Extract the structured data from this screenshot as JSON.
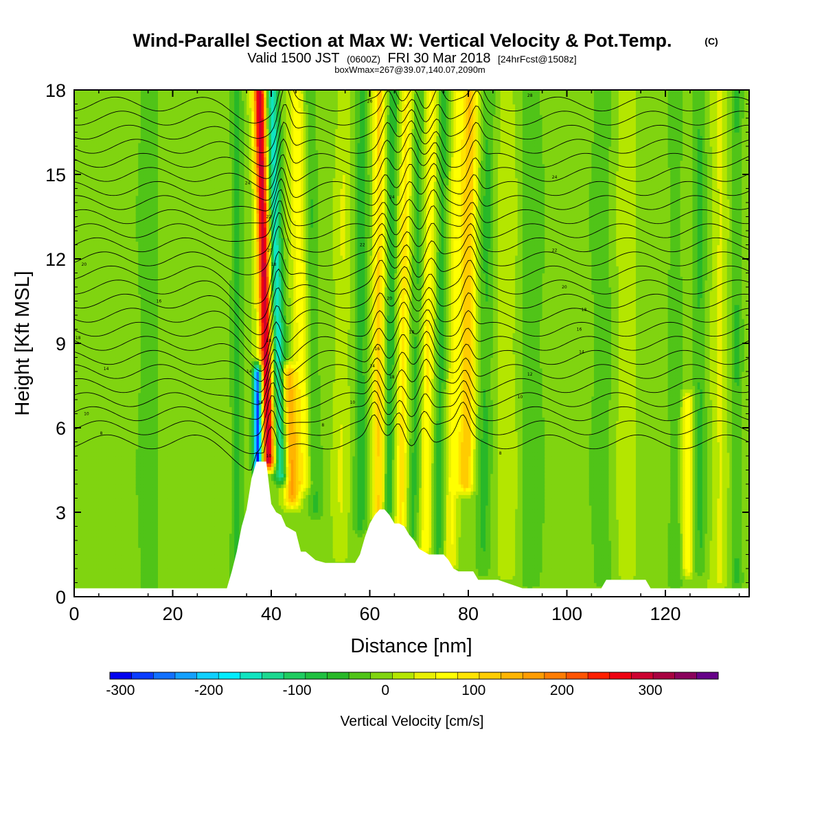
{
  "title": {
    "main": "Wind-Parallel Section at Max W: Vertical Velocity & Pot.Temp.",
    "copyright": "(C)",
    "valid_prefix": "Valid 1500 JST",
    "valid_utc": "(0600Z)",
    "valid_date": "FRI 30 Mar 2018",
    "forecast": "[24hrFcst@1508z]",
    "boxline": "boxWmax=267@39.07,140.07,2090m"
  },
  "colors": {
    "background_field": "#b8e600",
    "terrain": "#ffffff",
    "contour": "#000000",
    "scale": [
      "#0000ee",
      "#0a3cff",
      "#1270ff",
      "#14a0ff",
      "#10d0ff",
      "#00ecff",
      "#10e4c0",
      "#1cd890",
      "#20cc60",
      "#20c040",
      "#28b828",
      "#50c418",
      "#80d410",
      "#b4e600",
      "#e8f000",
      "#ffff00",
      "#ffe400",
      "#ffcc00",
      "#ffb400",
      "#ff9c00",
      "#ff7c00",
      "#ff5400",
      "#ff2000",
      "#ee0010",
      "#cc0030",
      "#a80040",
      "#8a005c",
      "#660088"
    ]
  },
  "chart_data": {
    "type": "heatmap",
    "xlabel": "Distance [nm]",
    "ylabel": "Height [Kft MSL]",
    "xlim": [
      0,
      137
    ],
    "ylim": [
      0,
      18
    ],
    "xticks": [
      "0",
      "20",
      "40",
      "60",
      "80",
      "100",
      "120"
    ],
    "yticks": [
      "0",
      "3",
      "6",
      "9",
      "12",
      "15",
      "18"
    ],
    "x_tick_values": [
      0,
      20,
      40,
      60,
      80,
      100,
      120
    ],
    "y_tick_values": [
      0,
      3,
      6,
      9,
      12,
      15,
      18
    ],
    "colorbar": {
      "label": "Vertical Velocity [cm/s]",
      "ticks": [
        "-300",
        "-200",
        "-100",
        "0",
        "100",
        "200",
        "300"
      ],
      "tick_values": [
        -300,
        -200,
        -100,
        0,
        100,
        200,
        300
      ],
      "min": -312,
      "max": 377
    },
    "terrain_profile": {
      "x": [
        0,
        31,
        32,
        33,
        34,
        35,
        36,
        37,
        39,
        40,
        41,
        42,
        43,
        45,
        46,
        47,
        49,
        51,
        57,
        58,
        59,
        60,
        61,
        62,
        63,
        64,
        65,
        66,
        67,
        68,
        69,
        70,
        72,
        75,
        76,
        77,
        78,
        81,
        82,
        86,
        91,
        100,
        107,
        108,
        116,
        117,
        137
      ],
      "height": [
        0.3,
        0.3,
        0.9,
        1.6,
        2.5,
        3.1,
        4.2,
        4.8,
        4.8,
        3.3,
        3.0,
        2.9,
        2.5,
        2.3,
        1.6,
        1.6,
        1.3,
        1.2,
        1.2,
        1.5,
        2.1,
        2.6,
        2.9,
        3.1,
        3.1,
        2.9,
        2.6,
        2.6,
        2.5,
        2.2,
        2.0,
        1.7,
        1.5,
        1.5,
        1.3,
        1.0,
        0.9,
        0.9,
        0.6,
        0.6,
        0.3,
        0.3,
        0.3,
        0.6,
        0.6,
        0.3,
        0.3
      ]
    },
    "vertical_velocity_features": [
      {
        "x": 39.5,
        "z_bottom": 4.8,
        "z_top": 18,
        "tilt": -1.4,
        "width": 1.3,
        "peak": 300
      },
      {
        "x": 42.0,
        "z_bottom": 4.3,
        "z_top": 18,
        "tilt": -1.4,
        "width": 1.3,
        "peak": -160
      },
      {
        "x": 37.3,
        "z_bottom": 4.6,
        "z_top": 8,
        "tilt": 0.0,
        "width": 0.9,
        "peak": -300
      },
      {
        "x": 44.3,
        "z_bottom": 3.5,
        "z_top": 8,
        "tilt": -2.0,
        "width": 1.5,
        "peak": 150
      },
      {
        "x": 46.5,
        "z_bottom": 4.0,
        "z_top": 18,
        "tilt": -1.0,
        "width": 1.6,
        "peak": 70
      },
      {
        "x": 49.0,
        "z_bottom": 3.0,
        "z_top": 18,
        "tilt": -0.8,
        "width": 1.4,
        "peak": -40
      },
      {
        "x": 54.0,
        "z_bottom": 1.5,
        "z_top": 18,
        "tilt": 0.5,
        "width": 1.5,
        "peak": 30
      },
      {
        "x": 58.0,
        "z_bottom": 2.5,
        "z_top": 18,
        "tilt": 0.3,
        "width": 1.3,
        "peak": -55
      },
      {
        "x": 61.7,
        "z_bottom": 3.0,
        "z_top": 18,
        "tilt": 0.2,
        "width": 1.2,
        "peak": 110
      },
      {
        "x": 63.8,
        "z_bottom": 3.0,
        "z_top": 18,
        "tilt": 0.6,
        "width": 1.0,
        "peak": -60
      },
      {
        "x": 66.3,
        "z_bottom": 2.6,
        "z_top": 18,
        "tilt": 0.8,
        "width": 1.1,
        "peak": 90
      },
      {
        "x": 68.8,
        "z_bottom": 2.2,
        "z_top": 18,
        "tilt": 0.8,
        "width": 1.1,
        "peak": -45
      },
      {
        "x": 71.3,
        "z_bottom": 1.7,
        "z_top": 18,
        "tilt": 0.8,
        "width": 1.1,
        "peak": 80
      },
      {
        "x": 73.8,
        "z_bottom": 1.5,
        "z_top": 18,
        "tilt": 0.8,
        "width": 1.1,
        "peak": -50
      },
      {
        "x": 76.5,
        "z_bottom": 1.2,
        "z_top": 18,
        "tilt": 0.8,
        "width": 1.2,
        "peak": 60
      },
      {
        "x": 79.5,
        "z_bottom": 4.0,
        "z_top": 18,
        "tilt": 0.6,
        "width": 1.6,
        "peak": 130
      },
      {
        "x": 83.0,
        "z_bottom": 1.0,
        "z_top": 18,
        "tilt": 0.6,
        "width": 1.5,
        "peak": -45
      },
      {
        "x": 88.0,
        "z_bottom": 0.8,
        "z_top": 18,
        "tilt": 0.0,
        "width": 2.0,
        "peak": 25
      },
      {
        "x": 93.0,
        "z_bottom": 0.5,
        "z_top": 18,
        "tilt": 0.0,
        "width": 2.5,
        "peak": -35
      },
      {
        "x": 107.0,
        "z_bottom": 0.5,
        "z_top": 18,
        "tilt": 0.0,
        "width": 2.5,
        "peak": -30
      },
      {
        "x": 112.0,
        "z_bottom": 0.8,
        "z_top": 18,
        "tilt": 0.0,
        "width": 2.0,
        "peak": 25
      },
      {
        "x": 122.0,
        "z_bottom": 0.5,
        "z_top": 18,
        "tilt": 0.0,
        "width": 1.5,
        "peak": -35
      },
      {
        "x": 124.5,
        "z_bottom": 1.0,
        "z_top": 7.0,
        "tilt": 0.0,
        "width": 1.2,
        "peak": 75
      },
      {
        "x": 127.0,
        "z_bottom": 1.0,
        "z_top": 18,
        "tilt": 0.0,
        "width": 1.3,
        "peak": -45
      },
      {
        "x": 131.0,
        "z_bottom": 0.5,
        "z_top": 18,
        "tilt": 0.0,
        "width": 1.5,
        "peak": 35
      },
      {
        "x": 134.5,
        "z_bottom": 0.5,
        "z_top": 18,
        "tilt": 0.0,
        "width": 1.2,
        "peak": -40
      },
      {
        "x": 15.0,
        "z_bottom": 0.3,
        "z_top": 18,
        "tilt": 0.0,
        "width": 2.5,
        "peak": -30
      },
      {
        "x": 33.0,
        "z_bottom": 0.3,
        "z_top": 18,
        "tilt": 0.0,
        "width": 1.2,
        "peak": -50
      }
    ],
    "theta_contours": {
      "left_heights_kft": [
        5.5,
        6.0,
        6.5,
        7.0,
        7.5,
        8.0,
        8.5,
        9.0,
        9.5,
        10.0,
        10.5,
        11.0,
        11.5,
        12.0,
        12.5,
        13.0,
        13.5,
        14.0,
        14.5,
        15.0,
        15.5,
        16.0,
        16.5,
        17.0,
        17.5
      ],
      "upstream_dip_kft": 0.6,
      "wave_crest_x": [
        41,
        62,
        67,
        72,
        80
      ],
      "wave_amplitude_kft": 0.9,
      "labels": [
        {
          "text": "8",
          "x": 5.5,
          "y": 5.8
        },
        {
          "text": "10",
          "x": 2.5,
          "y": 6.5
        },
        {
          "text": "14",
          "x": 6.5,
          "y": 8.1
        },
        {
          "text": "18",
          "x": 0.8,
          "y": 9.2
        },
        {
          "text": "16",
          "x": 17.2,
          "y": 10.5
        },
        {
          "text": "20",
          "x": 2.0,
          "y": 11.8
        },
        {
          "text": "24",
          "x": 35.2,
          "y": 14.7
        },
        {
          "text": "8",
          "x": 50.5,
          "y": 6.1
        },
        {
          "text": "10",
          "x": 56.5,
          "y": 6.9
        },
        {
          "text": "14",
          "x": 60.5,
          "y": 8.2
        },
        {
          "text": "16",
          "x": 61.5,
          "y": 8.8
        },
        {
          "text": "18",
          "x": 64.5,
          "y": 7.8
        },
        {
          "text": "18",
          "x": 68.5,
          "y": 9.4
        },
        {
          "text": "20",
          "x": 64.0,
          "y": 10.6
        },
        {
          "text": "22",
          "x": 58.5,
          "y": 12.5
        },
        {
          "text": "24",
          "x": 64.5,
          "y": 14.2
        },
        {
          "text": "26",
          "x": 60.0,
          "y": 17.6
        },
        {
          "text": "28",
          "x": 92.5,
          "y": 17.8
        },
        {
          "text": "24",
          "x": 97.5,
          "y": 14.9
        },
        {
          "text": "22",
          "x": 97.5,
          "y": 12.3
        },
        {
          "text": "20",
          "x": 99.5,
          "y": 11.0
        },
        {
          "text": "18",
          "x": 103.5,
          "y": 10.2
        },
        {
          "text": "16",
          "x": 102.5,
          "y": 9.5
        },
        {
          "text": "14",
          "x": 103.0,
          "y": 8.7
        },
        {
          "text": "12",
          "x": 92.5,
          "y": 7.9
        },
        {
          "text": "10",
          "x": 90.5,
          "y": 7.1
        },
        {
          "text": "8",
          "x": 86.5,
          "y": 5.1
        },
        {
          "text": "16",
          "x": 37.8,
          "y": 6.9
        },
        {
          "text": "14",
          "x": 35.5,
          "y": 8.0
        },
        {
          "text": "18",
          "x": 39.5,
          "y": 9.1
        },
        {
          "text": "18",
          "x": 40.5,
          "y": 11.8
        },
        {
          "text": "20",
          "x": 39.7,
          "y": 12.3
        },
        {
          "text": "22",
          "x": 39.5,
          "y": 13.5
        },
        {
          "text": "10",
          "x": 39.5,
          "y": 5.0
        }
      ]
    }
  }
}
